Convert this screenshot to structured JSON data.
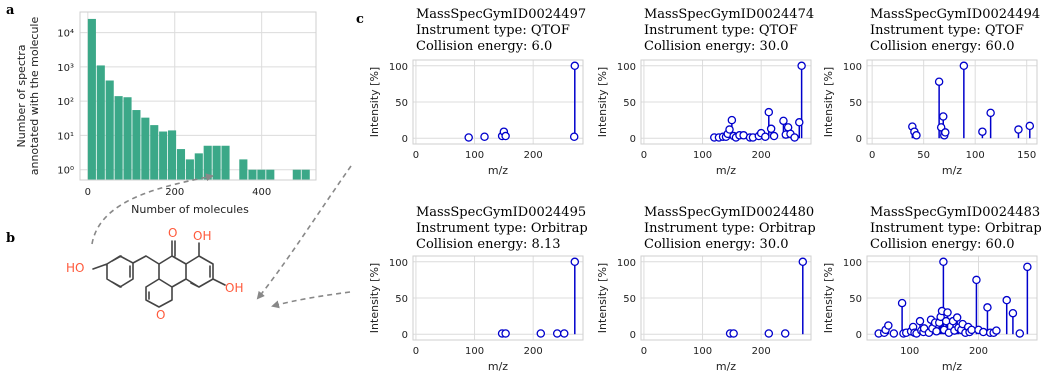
{
  "panel_labels": {
    "a": "a",
    "b": "b",
    "c": "c"
  },
  "molecule": {
    "atoms": [
      "HO",
      "O",
      "OH",
      "O",
      "OH"
    ]
  },
  "chart_data": [
    {
      "type": "bar",
      "xlabel": "Number of molecules",
      "ylabel_line1": "Number of spectra",
      "ylabel_line2": "annotated with the molecule",
      "x_ticks": [
        "0",
        "200",
        "400"
      ],
      "y_ticks": [
        "10⁰",
        "10¹",
        "10²",
        "10³",
        "10⁴"
      ],
      "xlim": [
        -18,
        525
      ],
      "ylim_log": [
        -0.3,
        4.6
      ],
      "bin_width": 20.5,
      "bars": [
        {
          "x": 0,
          "v": 25000
        },
        {
          "x": 20.5,
          "v": 1100
        },
        {
          "x": 41,
          "v": 400
        },
        {
          "x": 61.5,
          "v": 140
        },
        {
          "x": 82,
          "v": 130
        },
        {
          "x": 102.5,
          "v": 55
        },
        {
          "x": 123,
          "v": 33
        },
        {
          "x": 143.5,
          "v": 20
        },
        {
          "x": 164,
          "v": 13
        },
        {
          "x": 184.5,
          "v": 14
        },
        {
          "x": 205,
          "v": 4
        },
        {
          "x": 225.5,
          "v": 2
        },
        {
          "x": 246,
          "v": 3
        },
        {
          "x": 266.5,
          "v": 5
        },
        {
          "x": 287,
          "v": 5
        },
        {
          "x": 307.5,
          "v": 5
        },
        {
          "x": 348.5,
          "v": 2
        },
        {
          "x": 369.5,
          "v": 1
        },
        {
          "x": 390,
          "v": 1
        },
        {
          "x": 410.5,
          "v": 1
        },
        {
          "x": 471.5,
          "v": 1
        },
        {
          "x": 492,
          "v": 1
        }
      ],
      "color": "#3ba888"
    },
    {
      "type": "stem",
      "title": [
        "MassSpecGymID0024497",
        "Instrument type: QTOF",
        "Collision energy: 6.0"
      ],
      "xlabel": "m/z",
      "ylabel": "Intensity [%]",
      "xlim": [
        -5,
        285
      ],
      "ylim": [
        -8,
        108
      ],
      "x_ticks": [
        0,
        100,
        200
      ],
      "y_ticks": [
        0,
        50,
        100
      ],
      "peaks": [
        [
          90,
          1
        ],
        [
          117,
          2
        ],
        [
          147,
          3
        ],
        [
          150,
          9
        ],
        [
          153,
          3
        ],
        [
          270,
          2
        ],
        [
          271,
          100
        ]
      ],
      "color": "#0000cc"
    },
    {
      "type": "stem",
      "title": [
        "MassSpecGymID0024474",
        "Instrument type: QTOF",
        "Collision energy: 30.0"
      ],
      "xlabel": "m/z",
      "ylabel": "Intensity [%]",
      "xlim": [
        -5,
        285
      ],
      "ylim": [
        -8,
        108
      ],
      "x_ticks": [
        0,
        100,
        200
      ],
      "y_ticks": [
        0,
        50,
        100
      ],
      "peaks": [
        [
          120,
          1
        ],
        [
          128,
          1
        ],
        [
          135,
          2
        ],
        [
          140,
          2
        ],
        [
          143,
          6
        ],
        [
          146,
          12
        ],
        [
          150,
          25
        ],
        [
          153,
          3
        ],
        [
          157,
          1
        ],
        [
          163,
          4
        ],
        [
          170,
          4
        ],
        [
          181,
          1
        ],
        [
          186,
          1
        ],
        [
          196,
          3
        ],
        [
          200,
          7
        ],
        [
          207,
          2
        ],
        [
          213,
          36
        ],
        [
          217,
          13
        ],
        [
          222,
          3
        ],
        [
          238,
          24
        ],
        [
          242,
          5
        ],
        [
          246,
          15
        ],
        [
          250,
          6
        ],
        [
          257,
          1
        ],
        [
          265,
          22
        ],
        [
          269,
          100
        ]
      ],
      "color": "#0000cc"
    },
    {
      "type": "stem",
      "title": [
        "MassSpecGymID0024494",
        "Instrument type: QTOF",
        "Collision energy: 60.0"
      ],
      "xlabel": "m/z",
      "ylabel": "Intensity [%]",
      "xlim": [
        -5,
        160
      ],
      "ylim": [
        -8,
        108
      ],
      "x_ticks": [
        0,
        50,
        100,
        150
      ],
      "y_ticks": [
        0,
        50,
        100
      ],
      "peaks": [
        [
          39,
          16
        ],
        [
          41,
          9
        ],
        [
          43,
          4
        ],
        [
          65,
          78
        ],
        [
          67,
          15
        ],
        [
          69,
          30
        ],
        [
          70,
          4
        ],
        [
          71,
          8
        ],
        [
          89,
          100
        ],
        [
          107,
          9
        ],
        [
          115,
          35
        ],
        [
          142,
          12
        ],
        [
          153,
          17
        ]
      ],
      "color": "#0000cc"
    },
    {
      "type": "stem",
      "title": [
        "MassSpecGymID0024495",
        "Instrument type: Orbitrap",
        "Collision energy: 8.13"
      ],
      "xlabel": "m/z",
      "ylabel": "Intensity [%]",
      "xlim": [
        -5,
        285
      ],
      "ylim": [
        -8,
        108
      ],
      "x_ticks": [
        0,
        100,
        200
      ],
      "y_ticks": [
        0,
        50,
        100
      ],
      "peaks": [
        [
          147,
          1
        ],
        [
          153,
          1
        ],
        [
          213,
          1
        ],
        [
          241,
          1
        ],
        [
          253,
          1
        ],
        [
          271,
          100
        ]
      ],
      "color": "#0000cc"
    },
    {
      "type": "stem",
      "title": [
        "MassSpecGymID0024480",
        "Instrument type: Orbitrap",
        "Collision energy: 30.0"
      ],
      "xlabel": "m/z",
      "ylabel": "Intensity [%]",
      "xlim": [
        -5,
        285
      ],
      "ylim": [
        -8,
        108
      ],
      "x_ticks": [
        0,
        100,
        200
      ],
      "y_ticks": [
        0,
        50,
        100
      ],
      "peaks": [
        [
          147,
          1
        ],
        [
          153,
          1
        ],
        [
          213,
          1
        ],
        [
          241,
          1
        ],
        [
          271,
          100
        ]
      ],
      "color": "#0000cc"
    },
    {
      "type": "stem",
      "title": [
        "MassSpecGymID0024483",
        "Instrument type: Orbitrap",
        "Collision energy: 60.0"
      ],
      "xlabel": "m/z",
      "ylabel": "Intensity [%]",
      "xlim": [
        38,
        285
      ],
      "ylim": [
        -8,
        108
      ],
      "x_ticks": [
        100,
        200
      ],
      "y_ticks": [
        0,
        50,
        100
      ],
      "peaks": [
        [
          55,
          1
        ],
        [
          63,
          2
        ],
        [
          65,
          6
        ],
        [
          69,
          12
        ],
        [
          77,
          1
        ],
        [
          89,
          43
        ],
        [
          91,
          1
        ],
        [
          95,
          2
        ],
        [
          102,
          4
        ],
        [
          105,
          10
        ],
        [
          107,
          2
        ],
        [
          110,
          1
        ],
        [
          115,
          18
        ],
        [
          117,
          5
        ],
        [
          120,
          3
        ],
        [
          121,
          8
        ],
        [
          128,
          2
        ],
        [
          131,
          20
        ],
        [
          133,
          8
        ],
        [
          137,
          16
        ],
        [
          139,
          4
        ],
        [
          143,
          16
        ],
        [
          145,
          24
        ],
        [
          147,
          32
        ],
        [
          149,
          100
        ],
        [
          150,
          6
        ],
        [
          153,
          18
        ],
        [
          155,
          30
        ],
        [
          157,
          2
        ],
        [
          163,
          18
        ],
        [
          165,
          5
        ],
        [
          169,
          23
        ],
        [
          171,
          9
        ],
        [
          175,
          6
        ],
        [
          177,
          14
        ],
        [
          181,
          2
        ],
        [
          185,
          10
        ],
        [
          187,
          3
        ],
        [
          190,
          6
        ],
        [
          197,
          75
        ],
        [
          200,
          6
        ],
        [
          207,
          3
        ],
        [
          213,
          37
        ],
        [
          217,
          2
        ],
        [
          222,
          2
        ],
        [
          226,
          5
        ],
        [
          241,
          47
        ],
        [
          250,
          29
        ],
        [
          260,
          1
        ],
        [
          271,
          93
        ]
      ],
      "color": "#0000cc"
    }
  ]
}
